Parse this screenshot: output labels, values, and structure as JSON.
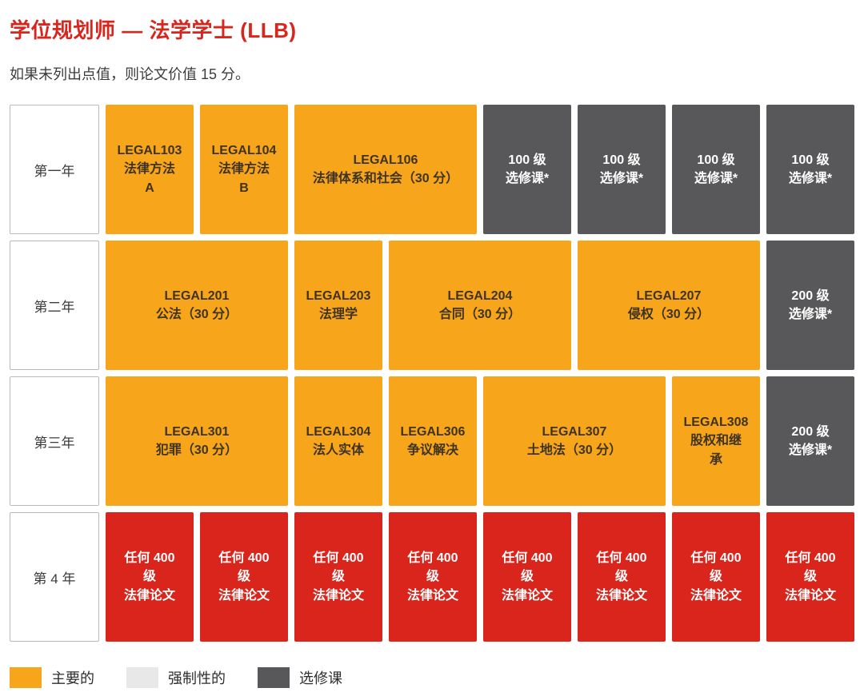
{
  "page": {
    "title": "学位规划师 — 法学学士 (LLB)",
    "subtitle": "如果未列出点值，则论文价值 15 分。"
  },
  "colors": {
    "core": "#F7A51B",
    "compulsory": "#E8E8E8",
    "elective": "#58585A",
    "thesis": "#DA251D",
    "heading": "#DA251D",
    "core_text": "#3F3322",
    "body_text": "#3C3C3C"
  },
  "rows": [
    {
      "year_label": "第一年",
      "courses": [
        {
          "code": "LEGAL103",
          "lines": [
            "LEGAL103",
            "法律方法",
            "A"
          ],
          "type": "core",
          "span": 1
        },
        {
          "code": "LEGAL104",
          "lines": [
            "LEGAL104",
            "法律方法",
            "B"
          ],
          "type": "core",
          "span": 1
        },
        {
          "code": "LEGAL106",
          "lines": [
            "LEGAL106",
            "法律体系和社会（30 分）"
          ],
          "type": "core",
          "span": 2
        },
        {
          "code": "elective-100-1",
          "lines": [
            "100 级",
            "选修课*"
          ],
          "type": "elective",
          "span": 1
        },
        {
          "code": "elective-100-2",
          "lines": [
            "100 级",
            "选修课*"
          ],
          "type": "elective",
          "span": 1
        },
        {
          "code": "elective-100-3",
          "lines": [
            "100 级",
            "选修课*"
          ],
          "type": "elective",
          "span": 1
        },
        {
          "code": "elective-100-4",
          "lines": [
            "100 级",
            "选修课*"
          ],
          "type": "elective",
          "span": 1
        }
      ]
    },
    {
      "year_label": "第二年",
      "courses": [
        {
          "code": "LEGAL201",
          "lines": [
            "LEGAL201",
            "公法（30 分）"
          ],
          "type": "core",
          "span": 2
        },
        {
          "code": "LEGAL203",
          "lines": [
            "LEGAL203",
            "法理学"
          ],
          "type": "core",
          "span": 1
        },
        {
          "code": "LEGAL204",
          "lines": [
            "LEGAL204",
            "合同（30 分）"
          ],
          "type": "core",
          "span": 2
        },
        {
          "code": "LEGAL207",
          "lines": [
            "LEGAL207",
            "侵权（30 分）"
          ],
          "type": "core",
          "span": 2
        },
        {
          "code": "elective-200-1",
          "lines": [
            "200 级",
            "选修课*"
          ],
          "type": "elective",
          "span": 1
        }
      ]
    },
    {
      "year_label": "第三年",
      "courses": [
        {
          "code": "LEGAL301",
          "lines": [
            "LEGAL301",
            "犯罪（30 分）"
          ],
          "type": "core",
          "span": 2
        },
        {
          "code": "LEGAL304",
          "lines": [
            "LEGAL304",
            "法人实体"
          ],
          "type": "core",
          "span": 1
        },
        {
          "code": "LEGAL306",
          "lines": [
            "LEGAL306",
            "争议解决"
          ],
          "type": "core",
          "span": 1
        },
        {
          "code": "LEGAL307",
          "lines": [
            "LEGAL307",
            "土地法（30 分）"
          ],
          "type": "core",
          "span": 2
        },
        {
          "code": "LEGAL308",
          "lines": [
            "LEGAL308",
            "股权和继",
            "承"
          ],
          "type": "core",
          "span": 1
        },
        {
          "code": "elective-200-2",
          "lines": [
            "200 级",
            "选修课*"
          ],
          "type": "elective",
          "span": 1
        }
      ]
    },
    {
      "year_label": "第 4 年",
      "courses": [
        {
          "code": "thesis-400-1",
          "lines": [
            "任何 400",
            "级",
            "法律论文"
          ],
          "type": "thesis",
          "span": 1
        },
        {
          "code": "thesis-400-2",
          "lines": [
            "任何 400",
            "级",
            "法律论文"
          ],
          "type": "thesis",
          "span": 1
        },
        {
          "code": "thesis-400-3",
          "lines": [
            "任何 400",
            "级",
            "法律论文"
          ],
          "type": "thesis",
          "span": 1
        },
        {
          "code": "thesis-400-4",
          "lines": [
            "任何 400",
            "级",
            "法律论文"
          ],
          "type": "thesis",
          "span": 1
        },
        {
          "code": "thesis-400-5",
          "lines": [
            "任何 400",
            "级",
            "法律论文"
          ],
          "type": "thesis",
          "span": 1
        },
        {
          "code": "thesis-400-6",
          "lines": [
            "任何 400",
            "级",
            "法律论文"
          ],
          "type": "thesis",
          "span": 1
        },
        {
          "code": "thesis-400-7",
          "lines": [
            "任何 400",
            "级",
            "法律论文"
          ],
          "type": "thesis",
          "span": 1
        },
        {
          "code": "thesis-400-8",
          "lines": [
            "任何 400",
            "级",
            "法律论文"
          ],
          "type": "thesis",
          "span": 1
        }
      ]
    }
  ],
  "legend": [
    {
      "label": "主要的",
      "type": "core"
    },
    {
      "label": "强制性的",
      "type": "compulsory"
    },
    {
      "label": "选修课",
      "type": "elective"
    }
  ]
}
